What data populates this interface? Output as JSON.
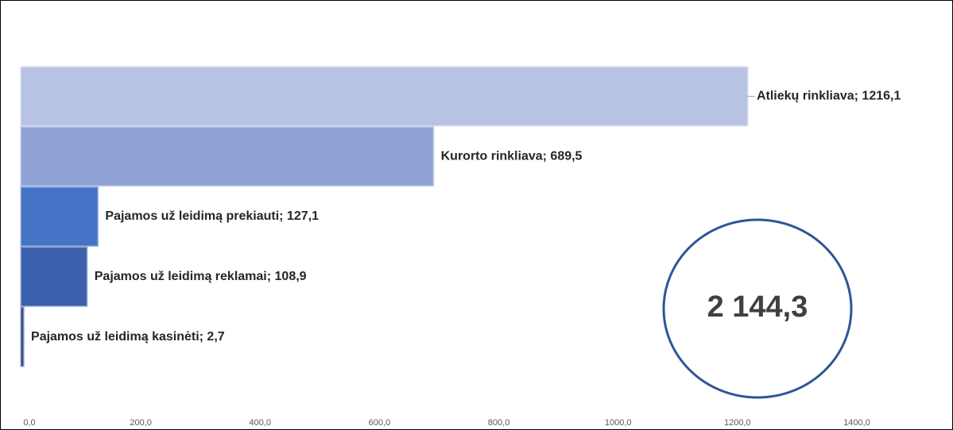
{
  "chart_data": {
    "type": "bar",
    "orientation": "horizontal",
    "values": [
      1216.1,
      689.5,
      127.1,
      108.9,
      2.7
    ],
    "value_labels": [
      "Atliekų rinkliava; 1216,1",
      "Kurorto rinkliava; 689,5",
      "Pajamos už leidimą prekiauti; 127,1",
      "Pajamos už leidimą reklamai; 108,9",
      "Pajamos už leidimą kasinėti; 2,7"
    ],
    "colors": [
      "#b8c2e3",
      "#8fa3d6",
      "#4472c4",
      "#3b5faa",
      "#2e4a8a"
    ],
    "xlim": [
      0,
      1400
    ],
    "xticks": [
      {
        "value": 0,
        "label": "0,0"
      },
      {
        "value": 200,
        "label": "200,0"
      },
      {
        "value": 400,
        "label": "400,0"
      },
      {
        "value": 600,
        "label": "600,0"
      },
      {
        "value": 800,
        "label": "800,0"
      },
      {
        "value": 1000,
        "label": "1000,0"
      },
      {
        "value": 1200,
        "label": "1200,0"
      },
      {
        "value": 1400,
        "label": "1400,0"
      }
    ],
    "annotation": "2 144,3"
  }
}
